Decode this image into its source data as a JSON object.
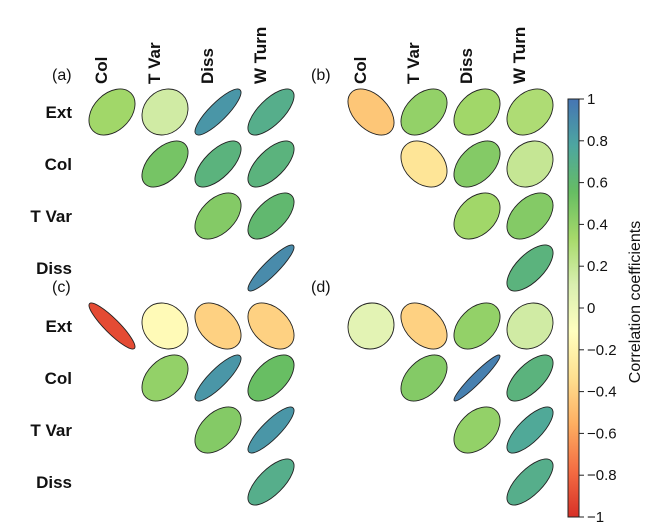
{
  "chart_data": {
    "type": "heatmap",
    "mark": "ellipse",
    "variables": [
      "Ext",
      "Col",
      "T Var",
      "Diss",
      "W Turn"
    ],
    "column_labels": [
      "Col",
      "T Var",
      "Diss",
      "W Turn"
    ],
    "row_labels": [
      "Ext",
      "Col",
      "T Var",
      "Diss"
    ],
    "panels": [
      {
        "label": "(a)",
        "column_labels_shown": true,
        "cells": [
          {
            "row": "Ext",
            "col": "Col",
            "value": 0.35
          },
          {
            "row": "Ext",
            "col": "T Var",
            "value": 0.15
          },
          {
            "row": "Ext",
            "col": "Diss",
            "value": 0.85
          },
          {
            "row": "Ext",
            "col": "W Turn",
            "value": 0.7
          },
          {
            "row": "Col",
            "col": "T Var",
            "value": 0.5
          },
          {
            "row": "Col",
            "col": "Diss",
            "value": 0.65
          },
          {
            "row": "Col",
            "col": "W Turn",
            "value": 0.65
          },
          {
            "row": "T Var",
            "col": "Diss",
            "value": 0.45
          },
          {
            "row": "T Var",
            "col": "W Turn",
            "value": 0.6
          },
          {
            "row": "Diss",
            "col": "W Turn",
            "value": 0.9
          }
        ]
      },
      {
        "label": "(b)",
        "column_labels_shown": true,
        "cells": [
          {
            "row": "Ext",
            "col": "Col",
            "value": -0.45
          },
          {
            "row": "Ext",
            "col": "T Var",
            "value": 0.4
          },
          {
            "row": "Ext",
            "col": "Diss",
            "value": 0.35
          },
          {
            "row": "Ext",
            "col": "W Turn",
            "value": 0.3
          },
          {
            "row": "Col",
            "col": "T Var",
            "value": -0.3
          },
          {
            "row": "Col",
            "col": "Diss",
            "value": 0.45
          },
          {
            "row": "Col",
            "col": "W Turn",
            "value": 0.2
          },
          {
            "row": "T Var",
            "col": "Diss",
            "value": 0.35
          },
          {
            "row": "T Var",
            "col": "W Turn",
            "value": 0.45
          },
          {
            "row": "Diss",
            "col": "W Turn",
            "value": 0.65
          }
        ]
      },
      {
        "label": "(c)",
        "column_labels_shown": false,
        "cells": [
          {
            "row": "Ext",
            "col": "Col",
            "value": -0.9
          },
          {
            "row": "Ext",
            "col": "T Var",
            "value": -0.15
          },
          {
            "row": "Ext",
            "col": "Diss",
            "value": -0.4
          },
          {
            "row": "Ext",
            "col": "W Turn",
            "value": -0.4
          },
          {
            "row": "Col",
            "col": "T Var",
            "value": 0.4
          },
          {
            "row": "Col",
            "col": "Diss",
            "value": 0.85
          },
          {
            "row": "Col",
            "col": "W Turn",
            "value": 0.55
          },
          {
            "row": "T Var",
            "col": "Diss",
            "value": 0.45
          },
          {
            "row": "T Var",
            "col": "W Turn",
            "value": 0.85
          },
          {
            "row": "Diss",
            "col": "W Turn",
            "value": 0.7
          }
        ]
      },
      {
        "label": "(d)",
        "column_labels_shown": false,
        "cells": [
          {
            "row": "Ext",
            "col": "Col",
            "value": 0.05
          },
          {
            "row": "Ext",
            "col": "T Var",
            "value": -0.4
          },
          {
            "row": "Ext",
            "col": "Diss",
            "value": 0.4
          },
          {
            "row": "Ext",
            "col": "W Turn",
            "value": 0.15
          },
          {
            "row": "Col",
            "col": "T Var",
            "value": 0.45
          },
          {
            "row": "Col",
            "col": "Diss",
            "value": 0.95
          },
          {
            "row": "Col",
            "col": "W Turn",
            "value": 0.65
          },
          {
            "row": "T Var",
            "col": "Diss",
            "value": 0.4
          },
          {
            "row": "T Var",
            "col": "W Turn",
            "value": 0.75
          },
          {
            "row": "Diss",
            "col": "W Turn",
            "value": 0.7
          }
        ]
      }
    ],
    "colorbar": {
      "label": "Correlation coefficients",
      "range": [
        -1,
        1
      ],
      "ticks": [
        1,
        0.8,
        0.6,
        0.4,
        0.2,
        0,
        -0.2,
        -0.4,
        -0.6,
        -0.8,
        -1
      ],
      "tick_labels": [
        "1",
        "0.8",
        "0.6",
        "0.4",
        "0.2",
        "0",
        "−0.2",
        "−0.4",
        "−0.6",
        "−0.8",
        "−1"
      ],
      "colors": [
        "#d73027",
        "#f46d43",
        "#fdae61",
        "#fee090",
        "#ffffbf",
        "#d9efb0",
        "#a6d96a",
        "#66bd63",
        "#4da6a0",
        "#4575b4"
      ]
    },
    "grid": false
  }
}
